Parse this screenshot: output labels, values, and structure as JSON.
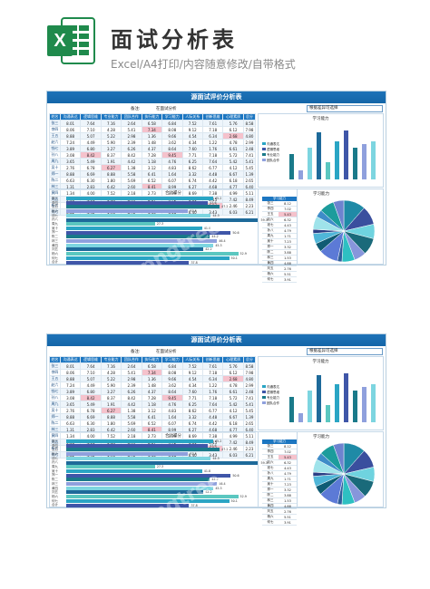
{
  "header": {
    "title": "面试分析表",
    "subtitle": "Excel/A4打印/内容随意修改/自带格式",
    "logo_letter": "X"
  },
  "colors": {
    "header_blue": "#1c76c1",
    "excel_green": "#1f8a4c",
    "highlight_pink": "#f5c2cc",
    "series": [
      "#2aa5c4",
      "#3f56a8",
      "#1a7a8a",
      "#8fa0dd",
      "#7dd5e0",
      "#1e6a9a",
      "#5bc7c0"
    ]
  },
  "sheets": [
    {
      "title": "源面试评价分析表",
      "info_label": "备注:",
      "info_value": "在面试分析",
      "select_value": "根据差异可选择",
      "table": {
        "headers": [
          "姓名",
          "沟通表达",
          "逻辑思维",
          "专业能力",
          "团队合作",
          "执行能力",
          "学习能力",
          "人际关系",
          "创新思维",
          "心理素质",
          "总分"
        ],
        "rows": [
          [
            "张三",
            "8.01",
            "7.64",
            "7.16",
            "2.64",
            "6.58",
            "6.84",
            "7.52",
            "7.61",
            "5.76",
            "8.58"
          ],
          [
            "李四",
            "8.06",
            "7.10",
            "4.28",
            "5.41",
            "7.34",
            "8.08",
            "9.12",
            "7.18",
            "6.12",
            "7.98"
          ],
          [
            "王五",
            "8.88",
            "5.07",
            "5.22",
            "2.98",
            "1.36",
            "9.66",
            "4.54",
            "6.34",
            "2.68",
            "4.80"
          ],
          [
            "赵六",
            "7.24",
            "4.49",
            "5.90",
            "2.39",
            "1.48",
            "3.62",
            "4.34",
            "1.22",
            "4.78",
            "2.99"
          ],
          [
            "钱七",
            "3.89",
            "6.80",
            "3.27",
            "6.26",
            "4.37",
            "8.64",
            "7.60",
            "1.76",
            "6.61",
            "2.48"
          ],
          [
            "孙八",
            "3.08",
            "8.42",
            "8.37",
            "8.42",
            "7.28",
            "9.45",
            "7.71",
            "7.18",
            "5.72",
            "7.41"
          ],
          [
            "周九",
            "3.65",
            "5.49",
            "1.91",
            "4.42",
            "1.18",
            "4.76",
            "6.25",
            "7.64",
            "5.42",
            "5.41"
          ],
          [
            "吴十",
            "2.76",
            "6.78",
            "6.27",
            "1.38",
            "3.12",
            "4.83",
            "8.62",
            "6.77",
            "4.12",
            "5.45"
          ],
          [
            "郑一",
            "8.88",
            "6.69",
            "8.88",
            "5.58",
            "6.41",
            "1.64",
            "3.32",
            "4.48",
            "6.67",
            "1.39"
          ],
          [
            "陈二",
            "6.63",
            "6.30",
            "1.80",
            "5.69",
            "6.52",
            "6.07",
            "6.74",
            "4.42",
            "6.18",
            "2.65"
          ],
          [
            "林三",
            "1.31",
            "2.83",
            "6.42",
            "2.60",
            "8.41",
            "8.99",
            "6.27",
            "4.68",
            "4.77",
            "6.40"
          ],
          [
            "黄四",
            "1.34",
            "4.00",
            "7.52",
            "2.18",
            "2.73",
            "3.99",
            "8.69",
            "7.38",
            "4.99",
            "5.11"
          ],
          [
            "刘五",
            "4.36",
            "4.01",
            "5.14",
            "8.99",
            "8.37",
            "9.72",
            "5.61",
            "2.15",
            "7.42",
            "8.49"
          ],
          [
            "杨六",
            "4.24",
            "6.02",
            "1.92",
            "4.66",
            "3.68",
            "4.91",
            "4.31",
            "9.14",
            "2.46",
            "2.23"
          ],
          [
            "何七",
            "8.82",
            "4.92",
            "1.96",
            "8.72",
            "4.40",
            "6.18",
            "6.40",
            "3.43",
            "6.03",
            "6.21"
          ]
        ]
      },
      "combined": {
        "caption": "合计得分",
        "names": [
          "张三",
          "李四",
          "王五",
          "赵六",
          "钱七",
          "孙八",
          "周九",
          "吴十",
          "郑一",
          "陈二",
          "林三",
          "黄四",
          "刘五",
          "杨六",
          "何七",
          "合计"
        ],
        "values": [
          45.2,
          43.6,
          47.2,
          37.5,
          44.5,
          59.3,
          27.3,
          41.8,
          50.6,
          44.2,
          46.4,
          45.3,
          42.2,
          52.9,
          50.1,
          37.8
        ]
      },
      "columns": {
        "caption": "学习能力",
        "legend": [
          "沟通表达",
          "逻辑思维",
          "专业能力",
          "团队合作"
        ],
        "categories": [
          "沟通表达",
          "逻辑思维",
          "专业能力",
          "团队合作",
          "执行能力",
          "学习能力",
          "人际关系",
          "创新思维",
          "心理素质",
          "总分"
        ],
        "values": [
          3.2,
          1.1,
          4.0,
          5.9,
          2.2,
          4.8,
          6.1,
          3.9,
          4.4,
          4.7
        ]
      },
      "pie": {
        "caption": "学习能力",
        "table_header": [
          "学习能力"
        ],
        "names": [
          "张三",
          "李四",
          "王五",
          "赵六",
          "钱七",
          "孙八",
          "周九",
          "吴十",
          "郑一",
          "陈二",
          "林三",
          "黄四",
          "刘五",
          "杨六",
          "何七"
        ],
        "values": [
          8.12,
          7.02,
          5.43,
          6.32,
          4.43,
          4.79,
          1.71,
          7.23,
          3.32,
          3.88,
          1.53,
          4.88,
          2.76,
          5.51,
          3.91
        ]
      }
    },
    {
      "title": "源面试评价分析表",
      "info_label": "备注:",
      "info_value": "在面试分析",
      "select_value": "根据差异可选择",
      "table": {
        "headers": [
          "姓名",
          "沟通表达",
          "逻辑思维",
          "专业能力",
          "团队合作",
          "执行能力",
          "学习能力",
          "人际关系",
          "创新思维",
          "心理素质",
          "总分"
        ],
        "rows": [
          [
            "张三",
            "8.01",
            "7.64",
            "7.16",
            "2.64",
            "6.58",
            "6.84",
            "7.52",
            "7.61",
            "5.76",
            "8.58"
          ],
          [
            "李四",
            "8.06",
            "7.10",
            "4.28",
            "5.41",
            "7.34",
            "8.08",
            "9.12",
            "7.18",
            "6.12",
            "7.98"
          ],
          [
            "王五",
            "8.88",
            "5.07",
            "5.22",
            "2.98",
            "1.36",
            "9.66",
            "4.54",
            "6.34",
            "2.68",
            "4.80"
          ],
          [
            "赵六",
            "7.24",
            "4.49",
            "5.90",
            "2.39",
            "1.48",
            "3.62",
            "4.34",
            "1.22",
            "4.78",
            "2.99"
          ],
          [
            "钱七",
            "3.89",
            "6.80",
            "3.27",
            "6.26",
            "4.37",
            "8.64",
            "7.60",
            "1.76",
            "6.61",
            "2.48"
          ],
          [
            "孙八",
            "3.08",
            "8.42",
            "8.37",
            "8.42",
            "7.28",
            "9.45",
            "7.71",
            "7.18",
            "5.72",
            "7.41"
          ],
          [
            "周九",
            "3.65",
            "5.49",
            "1.91",
            "4.42",
            "1.18",
            "4.76",
            "6.25",
            "7.64",
            "5.42",
            "5.41"
          ],
          [
            "吴十",
            "2.76",
            "6.78",
            "6.27",
            "1.38",
            "3.12",
            "4.83",
            "8.62",
            "6.77",
            "4.12",
            "5.45"
          ],
          [
            "郑一",
            "8.88",
            "6.69",
            "8.88",
            "5.58",
            "6.41",
            "1.64",
            "3.32",
            "4.48",
            "6.67",
            "1.39"
          ],
          [
            "陈二",
            "6.63",
            "6.30",
            "1.80",
            "5.69",
            "6.52",
            "6.07",
            "6.74",
            "4.42",
            "6.18",
            "2.65"
          ],
          [
            "林三",
            "1.31",
            "2.83",
            "6.42",
            "2.60",
            "8.41",
            "8.99",
            "6.27",
            "4.68",
            "4.77",
            "6.40"
          ],
          [
            "黄四",
            "1.34",
            "4.00",
            "7.52",
            "2.18",
            "2.73",
            "3.99",
            "8.69",
            "7.38",
            "4.99",
            "5.11"
          ],
          [
            "刘五",
            "4.36",
            "4.01",
            "5.14",
            "8.99",
            "8.37",
            "9.72",
            "5.61",
            "2.15",
            "7.42",
            "8.49"
          ],
          [
            "杨六",
            "4.24",
            "6.02",
            "1.92",
            "4.66",
            "3.68",
            "4.91",
            "4.31",
            "9.14",
            "2.46",
            "2.23"
          ],
          [
            "何七",
            "8.82",
            "4.92",
            "1.96",
            "8.72",
            "4.40",
            "6.18",
            "6.40",
            "3.43",
            "6.03",
            "6.21"
          ]
        ]
      },
      "combined": {
        "caption": "合计得分",
        "names": [
          "张三",
          "李四",
          "王五",
          "赵六",
          "钱七",
          "孙八",
          "周九",
          "吴十",
          "郑一",
          "陈二",
          "林三",
          "黄四",
          "刘五",
          "杨六",
          "何七",
          "合计"
        ],
        "values": [
          45.2,
          43.6,
          47.2,
          37.5,
          44.5,
          59.3,
          27.3,
          41.8,
          50.6,
          44.2,
          46.4,
          45.3,
          42.2,
          52.9,
          50.1,
          37.8
        ]
      },
      "columns": {
        "caption": "学习能力",
        "legend": [
          "沟通表达",
          "逻辑思维",
          "专业能力",
          "团队合作"
        ],
        "categories": [
          "沟通表达",
          "逻辑思维",
          "专业能力",
          "团队合作",
          "执行能力",
          "学习能力",
          "人际关系",
          "创新思维",
          "心理素质",
          "总分"
        ],
        "values": [
          3.2,
          1.1,
          4.0,
          5.9,
          2.2,
          4.8,
          6.1,
          3.9,
          4.4,
          4.7
        ]
      },
      "pie": {
        "caption": "学习能力",
        "table_header": [
          "学习能力"
        ],
        "names": [
          "张三",
          "李四",
          "王五",
          "赵六",
          "钱七",
          "孙八",
          "周九",
          "吴十",
          "郑一",
          "陈二",
          "林三",
          "黄四",
          "刘五",
          "杨六",
          "何七"
        ],
        "values": [
          8.12,
          7.02,
          5.43,
          6.32,
          4.43,
          4.79,
          1.71,
          7.23,
          3.32,
          3.88,
          1.53,
          4.88,
          2.76,
          5.51,
          3.91
        ]
      }
    }
  ]
}
